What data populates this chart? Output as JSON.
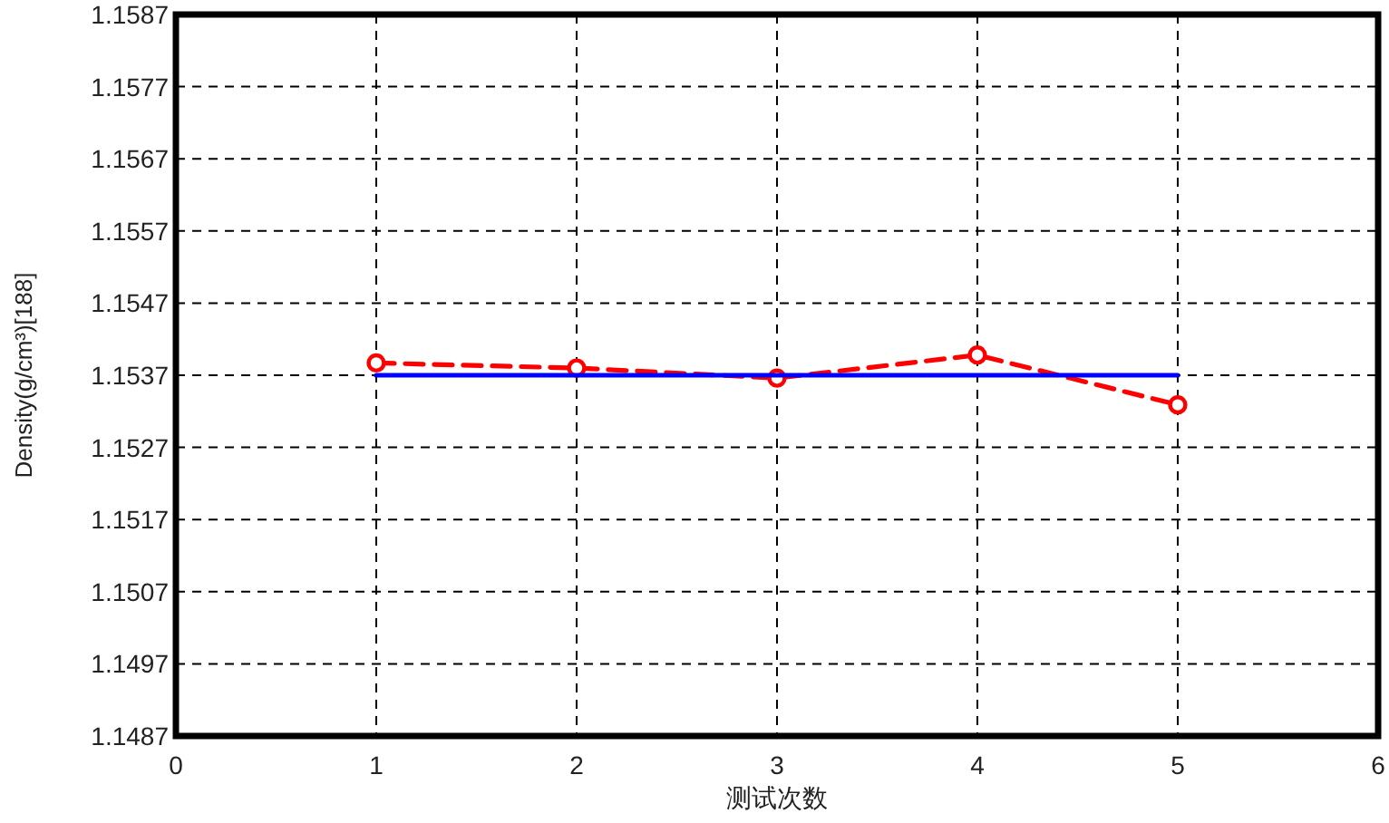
{
  "chart_data": {
    "type": "line",
    "xlabel": "测试次数",
    "ylabel": "Density(g/cm³)[188]",
    "xlim": [
      0,
      6
    ],
    "xticks": [
      0,
      1,
      2,
      3,
      4,
      5,
      6
    ],
    "ylim": [
      1.1487,
      1.1587
    ],
    "yticks": [
      1.1487,
      1.1497,
      1.1507,
      1.1517,
      1.1527,
      1.1537,
      1.1547,
      1.1557,
      1.1567,
      1.1577,
      1.1587
    ],
    "grid": true,
    "series": [
      {
        "color": "#ff0000",
        "x": [
          1,
          2,
          3,
          4,
          5
        ],
        "values": [
          1.15387,
          1.1538,
          1.15366,
          1.15398,
          1.15329
        ],
        "marker": "circle",
        "line_style": "dashed"
      },
      {
        "color": "#0000ff",
        "x": [
          1,
          5
        ],
        "values": [
          1.1537,
          1.1537
        ],
        "marker": "none",
        "line_style": "solid"
      }
    ]
  }
}
